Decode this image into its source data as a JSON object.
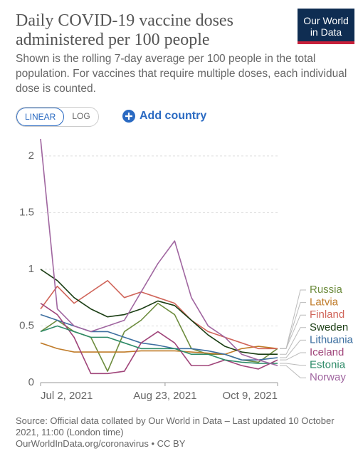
{
  "header": {
    "title": "Daily COVID-19 vaccine doses administered per 100 people",
    "subtitle": "Shown is the rolling 7-day average per 100 people in the total population. For vaccines that require multiple doses, each individual dose is counted.",
    "logo": [
      "Our World",
      "in Data"
    ]
  },
  "controls": {
    "scale_options": [
      "LINEAR",
      "LOG"
    ],
    "add_country": "Add country"
  },
  "chart_data": {
    "type": "line",
    "log": false,
    "grid": true,
    "x": [
      "2021-07-02",
      "2021-07-09",
      "2021-07-16",
      "2021-07-23",
      "2021-07-30",
      "2021-08-06",
      "2021-08-13",
      "2021-08-20",
      "2021-08-27",
      "2021-09-03",
      "2021-09-10",
      "2021-09-17",
      "2021-09-24",
      "2021-10-01",
      "2021-10-09"
    ],
    "xlim": [
      "2021-07-02",
      "2021-10-09"
    ],
    "xticks": [
      {
        "value": "2021-07-02",
        "label": "Jul 2, 2021"
      },
      {
        "value": "2021-08-23",
        "label": "Aug 23, 2021"
      },
      {
        "value": "2021-10-09",
        "label": "Oct 9, 2021"
      }
    ],
    "ylim": [
      0,
      2.2
    ],
    "yticks": [
      0,
      0.5,
      1,
      1.5,
      2
    ],
    "series": [
      {
        "name": "Russia",
        "color": "#6d8c3e",
        "values": [
          0.45,
          0.55,
          0.45,
          0.4,
          0.1,
          0.45,
          0.55,
          0.7,
          0.6,
          0.3,
          0.25,
          0.25,
          0.2,
          0.18,
          0.3
        ]
      },
      {
        "name": "Latvia",
        "color": "#c07c2a",
        "values": [
          0.35,
          0.3,
          0.27,
          0.27,
          0.27,
          0.27,
          0.28,
          0.28,
          0.28,
          0.27,
          0.26,
          0.25,
          0.3,
          0.32,
          0.3
        ]
      },
      {
        "name": "Finland",
        "color": "#d0655a",
        "values": [
          0.65,
          0.85,
          0.7,
          0.8,
          0.9,
          0.75,
          0.8,
          0.75,
          0.7,
          0.55,
          0.45,
          0.4,
          0.35,
          0.3,
          0.3
        ]
      },
      {
        "name": "Sweden",
        "color": "#1b3e14",
        "values": [
          1.0,
          0.9,
          0.75,
          0.65,
          0.58,
          0.6,
          0.65,
          0.72,
          0.68,
          0.55,
          0.42,
          0.32,
          0.27,
          0.25,
          0.25
        ]
      },
      {
        "name": "Lithuania",
        "color": "#3d6fa0",
        "values": [
          0.6,
          0.55,
          0.5,
          0.45,
          0.45,
          0.4,
          0.35,
          0.33,
          0.3,
          0.3,
          0.28,
          0.25,
          0.2,
          0.2,
          0.22
        ]
      },
      {
        "name": "Iceland",
        "color": "#a0457a",
        "values": [
          0.7,
          0.6,
          0.4,
          0.08,
          0.08,
          0.1,
          0.35,
          0.45,
          0.35,
          0.15,
          0.15,
          0.2,
          0.15,
          0.12,
          0.2
        ]
      },
      {
        "name": "Estonia",
        "color": "#2e8b68",
        "values": [
          0.45,
          0.5,
          0.45,
          0.4,
          0.4,
          0.35,
          0.3,
          0.3,
          0.3,
          0.25,
          0.25,
          0.2,
          0.18,
          0.17,
          0.17
        ]
      },
      {
        "name": "Norway",
        "color": "#a066a0",
        "values": [
          2.15,
          0.65,
          0.5,
          0.45,
          0.5,
          0.55,
          0.8,
          1.05,
          1.25,
          0.75,
          0.5,
          0.4,
          0.25,
          0.2,
          0.15
        ]
      }
    ]
  },
  "footer": {
    "source": "Source: Official data collated by Our World in Data – Last updated 10 October 2021, 11:00 (London time)",
    "link": "OurWorldInData.org/coronavirus • CC BY"
  }
}
